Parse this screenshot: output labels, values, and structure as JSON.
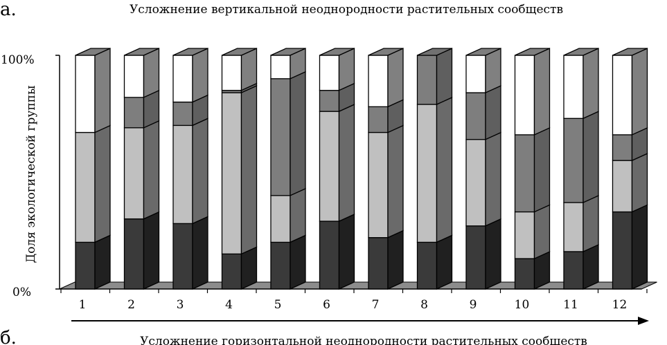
{
  "panel_label_top": "а.",
  "panel_label_bottom": "б.",
  "top_caption": "Усложнение вертикальной неоднородности растительных сообществ",
  "bottom_caption": "Усложнение горизонтальной неоднородности растительных сообществ",
  "colors": {
    "seg1": "#3a3a3a",
    "seg2": "#c0c0c0",
    "seg3": "#7e7e7e",
    "seg4": "#ffffff",
    "floor": "#8c8c8c",
    "stroke": "#000000"
  },
  "chart_data": {
    "type": "bar",
    "stacked": true,
    "percent": true,
    "three_d": true,
    "title": "",
    "xlabel": "",
    "ylabel": "Доля экологической группы",
    "ylim": [
      0,
      100
    ],
    "y_ticks": [
      "0%",
      "100%"
    ],
    "categories": [
      "1",
      "2",
      "3",
      "4",
      "5",
      "6",
      "7",
      "8",
      "9",
      "10",
      "11",
      "12"
    ],
    "series": [
      {
        "values": [
          20,
          30,
          28,
          15,
          20,
          29,
          22,
          20,
          27,
          13,
          16,
          33
        ]
      },
      {
        "values": [
          47,
          39,
          42,
          69,
          20,
          47,
          45,
          59,
          37,
          20,
          21,
          22
        ]
      },
      {
        "values": [
          0,
          13,
          10,
          1,
          50,
          9,
          11,
          21,
          20,
          33,
          36,
          11
        ]
      },
      {
        "values": [
          33,
          18,
          20,
          15,
          10,
          15,
          22,
          0,
          16,
          34,
          27,
          34
        ]
      }
    ]
  }
}
